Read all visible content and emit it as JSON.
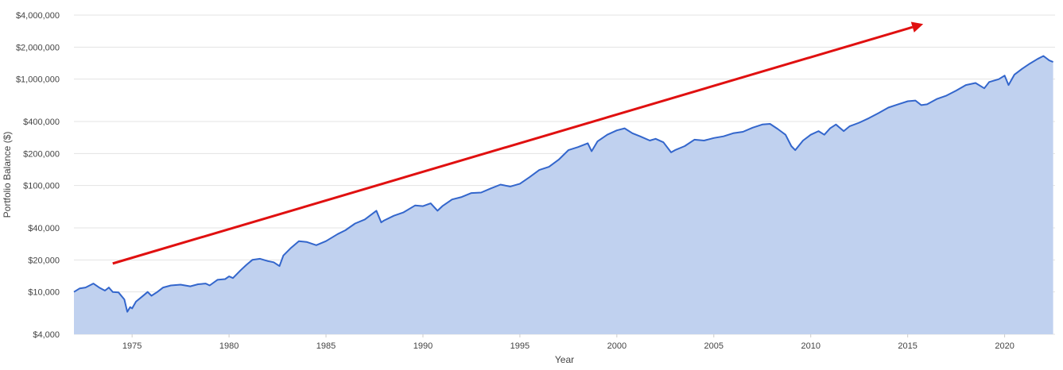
{
  "chart_data": {
    "type": "area",
    "title": "",
    "xlabel": "Year",
    "ylabel": "Portfolio Balance ($)",
    "y_scale": "log",
    "ylim": [
      4000,
      4000000
    ],
    "xlim": [
      1972,
      2022.6
    ],
    "grid": "horizontal",
    "legend": "none",
    "x_ticks": [
      1975,
      1980,
      1985,
      1990,
      1995,
      2000,
      2005,
      2010,
      2015,
      2020
    ],
    "x_tick_labels": [
      "1975",
      "1980",
      "1985",
      "1990",
      "1995",
      "2000",
      "2005",
      "2010",
      "2015",
      "2020"
    ],
    "y_ticks": [
      4000,
      10000,
      20000,
      40000,
      100000,
      200000,
      400000,
      1000000,
      2000000,
      4000000
    ],
    "y_tick_labels": [
      "$4,000",
      "$10,000",
      "$20,000",
      "$40,000",
      "$100,000",
      "$200,000",
      "$400,000",
      "$1,000,000",
      "$2,000,000",
      "$4,000,000"
    ],
    "colors": {
      "line": "#3366cc",
      "fill": "#c0d1ef",
      "arrow": "#e01010",
      "grid": "#e3e3e3",
      "text": "#444444"
    },
    "series": [
      {
        "values": [
          [
            1972.0,
            10000
          ],
          [
            1972.3,
            10800
          ],
          [
            1972.6,
            11000
          ],
          [
            1973.0,
            12000
          ],
          [
            1973.3,
            11000
          ],
          [
            1973.6,
            10300
          ],
          [
            1973.8,
            11000
          ],
          [
            1974.0,
            10000
          ],
          [
            1974.3,
            9900
          ],
          [
            1974.6,
            8500
          ],
          [
            1974.75,
            6500
          ],
          [
            1974.9,
            7200
          ],
          [
            1975.0,
            7000
          ],
          [
            1975.2,
            8100
          ],
          [
            1975.5,
            9000
          ],
          [
            1975.8,
            10000
          ],
          [
            1976.0,
            9200
          ],
          [
            1976.3,
            10000
          ],
          [
            1976.6,
            11000
          ],
          [
            1977.0,
            11500
          ],
          [
            1977.5,
            11700
          ],
          [
            1978.0,
            11300
          ],
          [
            1978.4,
            11800
          ],
          [
            1978.8,
            12000
          ],
          [
            1979.0,
            11500
          ],
          [
            1979.4,
            13000
          ],
          [
            1979.8,
            13200
          ],
          [
            1980.0,
            14000
          ],
          [
            1980.2,
            13500
          ],
          [
            1980.6,
            16000
          ],
          [
            1980.9,
            18000
          ],
          [
            1981.2,
            20000
          ],
          [
            1981.6,
            20500
          ],
          [
            1982.0,
            19500
          ],
          [
            1982.3,
            19000
          ],
          [
            1982.6,
            17500
          ],
          [
            1982.8,
            22000
          ],
          [
            1983.2,
            26000
          ],
          [
            1983.6,
            30000
          ],
          [
            1984.0,
            29500
          ],
          [
            1984.5,
            27500
          ],
          [
            1985.0,
            30000
          ],
          [
            1985.6,
            35000
          ],
          [
            1986.0,
            38000
          ],
          [
            1986.5,
            44000
          ],
          [
            1987.0,
            48000
          ],
          [
            1987.6,
            58000
          ],
          [
            1987.85,
            45000
          ],
          [
            1988.0,
            47000
          ],
          [
            1988.5,
            52000
          ],
          [
            1989.0,
            56000
          ],
          [
            1989.6,
            65000
          ],
          [
            1990.0,
            64000
          ],
          [
            1990.4,
            68000
          ],
          [
            1990.75,
            58000
          ],
          [
            1991.0,
            64000
          ],
          [
            1991.5,
            74000
          ],
          [
            1992.0,
            78000
          ],
          [
            1992.5,
            85000
          ],
          [
            1993.0,
            86000
          ],
          [
            1993.5,
            94000
          ],
          [
            1994.0,
            102000
          ],
          [
            1994.5,
            98000
          ],
          [
            1995.0,
            104000
          ],
          [
            1995.5,
            120000
          ],
          [
            1996.0,
            140000
          ],
          [
            1996.5,
            150000
          ],
          [
            1997.0,
            175000
          ],
          [
            1997.5,
            215000
          ],
          [
            1998.0,
            230000
          ],
          [
            1998.5,
            250000
          ],
          [
            1998.7,
            210000
          ],
          [
            1999.0,
            260000
          ],
          [
            1999.5,
            300000
          ],
          [
            2000.0,
            330000
          ],
          [
            2000.4,
            345000
          ],
          [
            2000.8,
            310000
          ],
          [
            2001.2,
            290000
          ],
          [
            2001.7,
            265000
          ],
          [
            2002.0,
            275000
          ],
          [
            2002.4,
            255000
          ],
          [
            2002.8,
            205000
          ],
          [
            2003.0,
            215000
          ],
          [
            2003.5,
            235000
          ],
          [
            2004.0,
            270000
          ],
          [
            2004.5,
            265000
          ],
          [
            2005.0,
            280000
          ],
          [
            2005.5,
            290000
          ],
          [
            2006.0,
            310000
          ],
          [
            2006.5,
            320000
          ],
          [
            2007.0,
            350000
          ],
          [
            2007.5,
            375000
          ],
          [
            2007.9,
            380000
          ],
          [
            2008.3,
            340000
          ],
          [
            2008.7,
            300000
          ],
          [
            2009.0,
            235000
          ],
          [
            2009.2,
            215000
          ],
          [
            2009.6,
            265000
          ],
          [
            2010.0,
            300000
          ],
          [
            2010.4,
            325000
          ],
          [
            2010.7,
            300000
          ],
          [
            2011.0,
            345000
          ],
          [
            2011.3,
            375000
          ],
          [
            2011.7,
            325000
          ],
          [
            2012.0,
            360000
          ],
          [
            2012.5,
            390000
          ],
          [
            2013.0,
            430000
          ],
          [
            2013.5,
            480000
          ],
          [
            2014.0,
            540000
          ],
          [
            2014.5,
            580000
          ],
          [
            2015.0,
            620000
          ],
          [
            2015.4,
            630000
          ],
          [
            2015.7,
            570000
          ],
          [
            2016.0,
            580000
          ],
          [
            2016.5,
            650000
          ],
          [
            2017.0,
            700000
          ],
          [
            2017.5,
            780000
          ],
          [
            2018.0,
            880000
          ],
          [
            2018.5,
            920000
          ],
          [
            2018.95,
            820000
          ],
          [
            2019.2,
            940000
          ],
          [
            2019.7,
            1000000
          ],
          [
            2020.0,
            1080000
          ],
          [
            2020.2,
            880000
          ],
          [
            2020.5,
            1100000
          ],
          [
            2020.9,
            1250000
          ],
          [
            2021.3,
            1400000
          ],
          [
            2021.7,
            1550000
          ],
          [
            2022.0,
            1650000
          ],
          [
            2022.3,
            1500000
          ],
          [
            2022.5,
            1450000
          ]
        ]
      }
    ],
    "trend_arrow": {
      "from": [
        1974.0,
        18500
      ],
      "to": [
        2015.8,
        3300000
      ]
    }
  }
}
